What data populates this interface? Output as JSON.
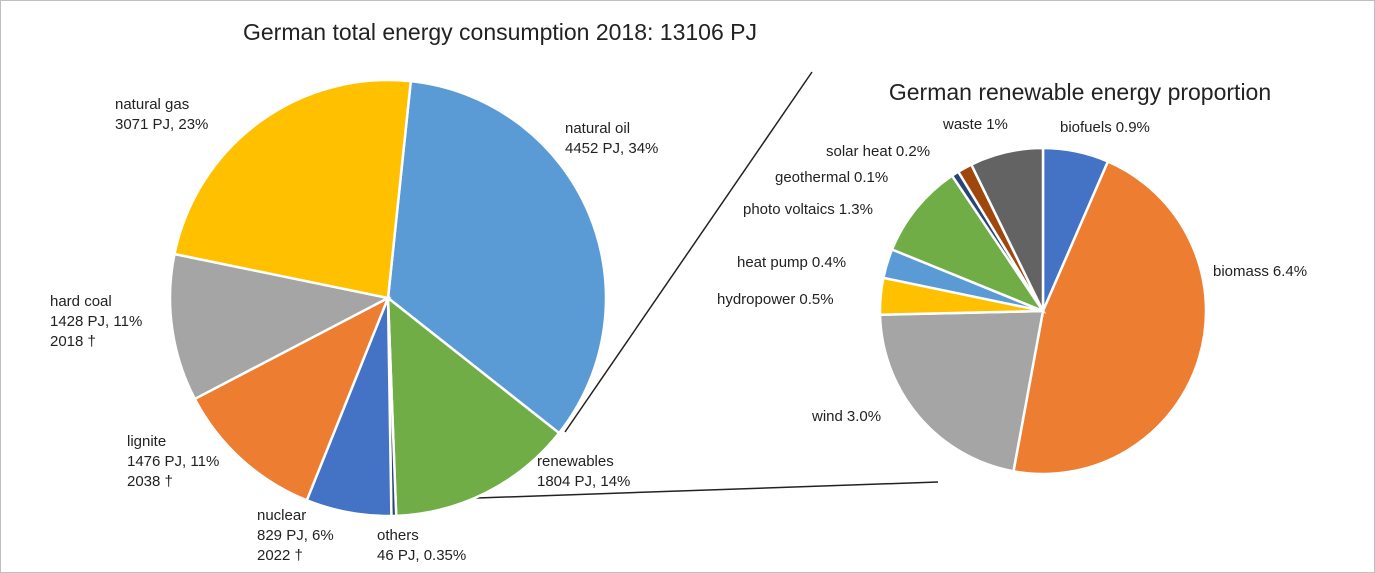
{
  "chart_data": [
    {
      "type": "pie",
      "title": "German total energy consumption 2018: 13106 PJ",
      "categories": [
        "natural oil",
        "renewables",
        "others",
        "nuclear",
        "lignite",
        "hard coal",
        "natural gas"
      ],
      "values": [
        4452,
        1804,
        46,
        829,
        1476,
        1428,
        3071
      ],
      "value_labels": [
        "4452 PJ, 34%",
        "1804 PJ, 14%",
        "46 PJ, 0.35%",
        "829 PJ, 6%",
        "1476 PJ, 11%",
        "1428 PJ, 11%",
        "3071 PJ, 23%"
      ],
      "annotations": [
        null,
        null,
        null,
        "2022 †",
        "2038 †",
        "2018 †",
        null
      ],
      "colors": [
        "#5b9bd5",
        "#70ad47",
        "#264478",
        "#4472c4",
        "#ed7d31",
        "#a5a5a5",
        "#ffc000"
      ]
    },
    {
      "type": "pie",
      "title": "German renewable energy proportion",
      "categories": [
        "biofuels",
        "biomass",
        "wind",
        "hydropower",
        "heat pump",
        "photo voltaics",
        "geothermal",
        "solar heat",
        "waste"
      ],
      "values": [
        0.9,
        6.4,
        3.0,
        0.5,
        0.4,
        1.3,
        0.1,
        0.2,
        1
      ],
      "value_labels": [
        "0.9%",
        "6.4%",
        "3.0%",
        "0.5%",
        "0.4%",
        "1.3%",
        "0.1%",
        "0.2%",
        "1%"
      ],
      "colors": [
        "#4472c4",
        "#ed7d31",
        "#a5a5a5",
        "#ffc000",
        "#5b9bd5",
        "#70ad47",
        "#264478",
        "#9e480e",
        "#636363"
      ]
    }
  ]
}
